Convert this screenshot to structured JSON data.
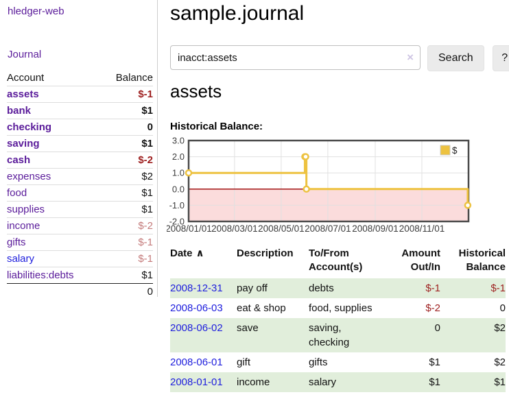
{
  "app": {
    "brand": "hledger-web"
  },
  "sidebar": {
    "nav_journal": "Journal",
    "accounts_header": {
      "account": "Account",
      "balance": "Balance"
    },
    "accounts": [
      {
        "name": "assets",
        "balance": "$-1"
      },
      {
        "name": "bank",
        "balance": "$1"
      },
      {
        "name": "checking",
        "balance": "0"
      },
      {
        "name": "saving",
        "balance": "$1"
      },
      {
        "name": "cash",
        "balance": "$-2"
      },
      {
        "name": "expenses",
        "balance": "$2"
      },
      {
        "name": "food",
        "balance": "$1"
      },
      {
        "name": "supplies",
        "balance": "$1"
      },
      {
        "name": "income",
        "balance": "$-2"
      },
      {
        "name": "gifts",
        "balance": "$-1"
      },
      {
        "name": "salary",
        "balance": "$-1"
      },
      {
        "name": "liabilities:debts",
        "balance": "$1"
      }
    ],
    "total": "0"
  },
  "header": {
    "title": "sample.journal"
  },
  "search": {
    "value": "inacct:assets",
    "clear_icon": "×",
    "button_label": "Search",
    "help_label": "?"
  },
  "account_page": {
    "heading": "assets",
    "chart_label": "Historical Balance:"
  },
  "chart_data": {
    "type": "line",
    "step": true,
    "title": "Historical Balance",
    "series": [
      {
        "name": "$",
        "color": "#edc240",
        "points": [
          [
            "2008-01-01",
            1
          ],
          [
            "2008-06-01",
            2
          ],
          [
            "2008-06-02",
            2
          ],
          [
            "2008-06-03",
            0
          ],
          [
            "2008-12-31",
            -1
          ]
        ]
      }
    ],
    "x_range": [
      "2008-01-01",
      "2009-01-01"
    ],
    "x_ticks": [
      "2008/01/01",
      "2008/03/01",
      "2008/05/01",
      "2008/07/01",
      "2008/09/01",
      "2008/11/01"
    ],
    "y_ticks": [
      3.0,
      2.0,
      1.0,
      0.0,
      -1.0,
      -2.0
    ],
    "ylim": [
      -2,
      3
    ],
    "grid": true,
    "legend": {
      "label": "$",
      "position": "top-right"
    },
    "colors": {
      "grid": "#e0e0e0",
      "border": "#4a4a4a",
      "negative_region": "#fbdcdc",
      "zero_line": "#990000",
      "tick_text": "#3c3c3c"
    }
  },
  "register": {
    "columns": {
      "date": "Date",
      "sort_icon": "∧",
      "description": "Description",
      "accounts": "To/From Account(s)",
      "amount": "Amount Out/In",
      "balance": "Historical Balance"
    },
    "rows": [
      {
        "date": "2008-12-31",
        "description": "pay off",
        "accounts": "debts",
        "amount": "$-1",
        "balance": "$-1"
      },
      {
        "date": "2008-06-03",
        "description": "eat & shop",
        "accounts": "food, supplies",
        "amount": "$-2",
        "balance": "0"
      },
      {
        "date": "2008-06-02",
        "description": "save",
        "accounts": "saving, checking",
        "amount": "0",
        "balance": "$2"
      },
      {
        "date": "2008-06-01",
        "description": "gift",
        "accounts": "gifts",
        "amount": "$1",
        "balance": "$2"
      },
      {
        "date": "2008-01-01",
        "description": "income",
        "accounts": "salary",
        "amount": "$1",
        "balance": "$1"
      }
    ]
  },
  "colors": {
    "link_purple": "#5a1b9a",
    "link_blue": "#2020dd",
    "negative_strong": "#9d1e1e",
    "negative_pale": "#c47a7a",
    "row_stripe_green": "#e1eedb",
    "series_yellow": "#edc240"
  }
}
